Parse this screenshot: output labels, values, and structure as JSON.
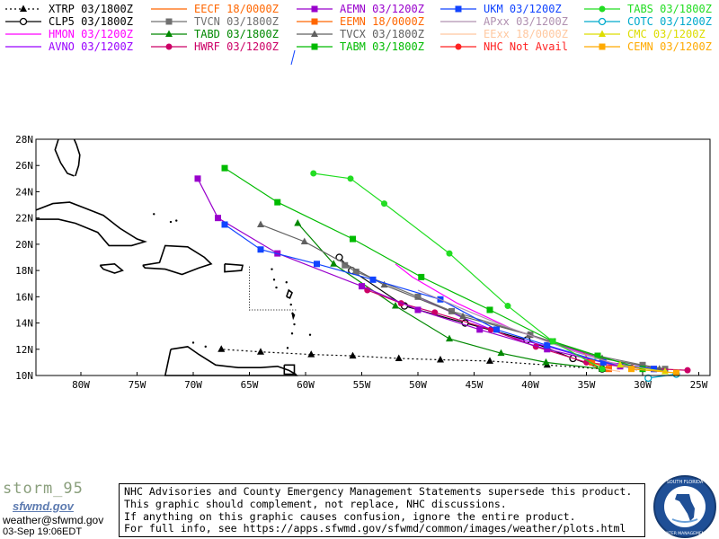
{
  "chart_data": {
    "type": "line",
    "title": "",
    "xlabel": "",
    "ylabel": "",
    "xlim": [
      -84,
      -24
    ],
    "ylim": [
      10,
      28
    ],
    "x_ticks": [
      -80,
      -75,
      -70,
      -65,
      -60,
      -55,
      -50,
      -45,
      -40,
      -35,
      -30,
      -25
    ],
    "x_tick_labels": [
      "80W",
      "75W",
      "70W",
      "65W",
      "60W",
      "55W",
      "50W",
      "45W",
      "40W",
      "35W",
      "30W",
      "25W"
    ],
    "y_ticks": [
      10,
      12,
      14,
      16,
      18,
      20,
      22,
      24,
      26,
      28
    ],
    "y_tick_labels": [
      "10N",
      "12N",
      "14N",
      "16N",
      "18N",
      "20N",
      "22N",
      "24N",
      "26N",
      "28N"
    ],
    "grid": false,
    "legend_position": "top",
    "series": [
      {
        "name": "XTRP 03/1800Z",
        "color": "#000000",
        "marker": "triangle",
        "dash": "2,3",
        "points": [
          [
            -33.6,
            10.5
          ],
          [
            -38.5,
            10.8
          ],
          [
            -43.6,
            11.1
          ],
          [
            -48.0,
            11.2
          ],
          [
            -51.7,
            11.3
          ],
          [
            -55.8,
            11.5
          ],
          [
            -59.5,
            11.6
          ],
          [
            -64.0,
            11.8
          ],
          [
            -67.5,
            12.0
          ]
        ]
      },
      {
        "name": "CLP5 03/1800Z",
        "color": "#000000",
        "marker": "circle-open",
        "points": [
          [
            -33.6,
            10.5
          ],
          [
            -36.2,
            11.3
          ],
          [
            -40.3,
            12.7
          ],
          [
            -45.8,
            14.0
          ],
          [
            -51.2,
            15.3
          ],
          [
            -55.9,
            18.0
          ],
          [
            -57.0,
            19.0
          ]
        ]
      },
      {
        "name": "HMON 03/1200Z",
        "color": "#ff00ff",
        "marker": "none",
        "points": [
          [
            -29.0,
            10.5
          ],
          [
            -33.0,
            11.0
          ],
          [
            -37.0,
            12.2
          ],
          [
            -41.5,
            13.5
          ],
          [
            -46.5,
            15.5
          ],
          [
            -50.5,
            17.5
          ],
          [
            -52.0,
            18.5
          ]
        ]
      },
      {
        "name": "AVNO 03/1200Z",
        "color": "#9900ff",
        "marker": "none",
        "points": [
          [
            -30.0,
            10.5
          ],
          [
            -34.0,
            11.1
          ],
          [
            -38.0,
            12.1
          ],
          [
            -42.0,
            13.0
          ],
          [
            -46.0,
            14.4
          ],
          [
            -50.0,
            16.0
          ]
        ]
      },
      {
        "name": "EECF 18/0000Z",
        "color": "#ff6600",
        "marker": "none",
        "points": [
          [
            -34.0,
            10.5
          ],
          [
            -34.8,
            11.2
          ],
          [
            -35.3,
            11.8
          ]
        ]
      },
      {
        "name": "TVCN 03/1800Z",
        "color": "#707070",
        "marker": "square",
        "points": [
          [
            -28.0,
            10.5
          ],
          [
            -30.0,
            10.8
          ],
          [
            -34.0,
            11.5
          ],
          [
            -40.0,
            13.1
          ],
          [
            -47.0,
            14.9
          ],
          [
            -50.0,
            16.0
          ],
          [
            -55.5,
            17.9
          ],
          [
            -56.5,
            18.4
          ]
        ]
      },
      {
        "name": "TABD 03/1800Z",
        "color": "#008800",
        "marker": "triangle",
        "points": [
          [
            -33.6,
            10.5
          ],
          [
            -38.6,
            11.0
          ],
          [
            -42.6,
            11.7
          ],
          [
            -47.2,
            12.8
          ],
          [
            -52.0,
            15.3
          ],
          [
            -57.5,
            18.5
          ],
          [
            -60.7,
            21.6
          ]
        ]
      },
      {
        "name": "HWRF 03/1200Z",
        "color": "#cc0066",
        "marker": "circle",
        "points": [
          [
            -26.0,
            10.4
          ],
          [
            -31.0,
            10.6
          ],
          [
            -35.0,
            11.0
          ],
          [
            -39.5,
            12.2
          ],
          [
            -43.5,
            13.5
          ],
          [
            -48.5,
            14.8
          ],
          [
            -51.5,
            15.5
          ],
          [
            -54.5,
            16.5
          ]
        ]
      },
      {
        "name": "AEMN 03/1200Z",
        "color": "#9900cc",
        "marker": "square",
        "points": [
          [
            -29.0,
            10.5
          ],
          [
            -32.0,
            10.7
          ],
          [
            -38.5,
            12.0
          ],
          [
            -44.5,
            13.5
          ],
          [
            -50.0,
            15.0
          ],
          [
            -55.0,
            16.8
          ],
          [
            -62.5,
            19.3
          ],
          [
            -67.8,
            22.0
          ],
          [
            -69.6,
            25.0
          ]
        ]
      },
      {
        "name": "EEMN 18/0000Z",
        "color": "#ff6600",
        "marker": "square",
        "points": [
          [
            -33.0,
            10.5
          ],
          [
            -34.5,
            11.0
          ]
        ]
      },
      {
        "name": "TVCX 03/1800Z",
        "color": "#606060",
        "marker": "triangle",
        "points": [
          [
            -28.5,
            10.5
          ],
          [
            -33.6,
            11.3
          ],
          [
            -40.1,
            13.1
          ],
          [
            -46.0,
            14.5
          ],
          [
            -53.0,
            16.9
          ],
          [
            -60.1,
            20.2
          ],
          [
            -64.0,
            21.5
          ]
        ]
      },
      {
        "name": "TABM 03/1800Z",
        "color": "#00bb00",
        "marker": "square",
        "points": [
          [
            -30.0,
            10.5
          ],
          [
            -34.0,
            11.5
          ],
          [
            -38.0,
            12.6
          ],
          [
            -43.6,
            15.0
          ],
          [
            -49.7,
            17.5
          ],
          [
            -55.8,
            20.4
          ],
          [
            -62.5,
            23.2
          ],
          [
            -67.2,
            25.8
          ]
        ]
      },
      {
        "name": "UKM 03/1200Z",
        "color": "#1144ff",
        "marker": "square",
        "points": [
          [
            -29.0,
            10.5
          ],
          [
            -33.5,
            11.0
          ],
          [
            -38.5,
            12.3
          ],
          [
            -43.0,
            13.5
          ],
          [
            -48.0,
            15.8
          ],
          [
            -54.0,
            17.3
          ],
          [
            -59.0,
            18.5
          ],
          [
            -64.0,
            19.6
          ],
          [
            -67.2,
            21.5
          ]
        ]
      },
      {
        "name": "APxx 03/1200Z",
        "color": "#b090b0",
        "marker": "none",
        "points": [
          [
            -30.5,
            10.4
          ],
          [
            -36.0,
            11.8
          ],
          [
            -43.0,
            14.0
          ],
          [
            -50.0,
            16.5
          ]
        ]
      },
      {
        "name": "EExx 18/0000Z",
        "color": "#ffc8a0",
        "marker": "none",
        "points": [
          [
            -32.0,
            10.3
          ],
          [
            -34.0,
            10.6
          ]
        ]
      },
      {
        "name": "NHC Not Avail",
        "color": "#ff2222",
        "marker": "circle",
        "points": []
      },
      {
        "name": "TABS 03/1800Z",
        "color": "#22dd22",
        "marker": "circle",
        "points": [
          [
            -33.6,
            10.5
          ],
          [
            -38.0,
            12.6
          ],
          [
            -42.0,
            15.3
          ],
          [
            -47.2,
            19.3
          ],
          [
            -53.0,
            23.1
          ],
          [
            -56.0,
            25.0
          ],
          [
            -59.3,
            25.4
          ]
        ]
      },
      {
        "name": "COTC 03/1200Z",
        "color": "#00aacc",
        "marker": "circle-open",
        "points": [
          [
            -27.0,
            10.1
          ],
          [
            -29.5,
            9.8
          ]
        ]
      },
      {
        "name": "CMC 03/1200Z",
        "color": "#dddd00",
        "marker": "triangle",
        "points": [
          [
            -28.0,
            10.3
          ],
          [
            -32.0,
            10.8
          ]
        ]
      },
      {
        "name": "CEMN 03/1200Z",
        "color": "#ffaa00",
        "marker": "square",
        "points": [
          [
            -27.0,
            10.2
          ],
          [
            -31.0,
            10.5
          ]
        ]
      }
    ]
  },
  "footer": {
    "storm_label": "storm_95",
    "brand": "sfwmd.gov",
    "email": "weather@sfwmd.gov",
    "timestamp": "03-Sep 19:06EDT",
    "disclaimer": [
      "NHC Advisories and County Emergency Management Statements supersede this product.",
      "This graphic should complement, not replace, NHC discussions.",
      "If anything on this graphic causes confusion, ignore the entire product.",
      "For full info, see  https://apps.sfwmd.gov/sfwmd/common/images/weather/plots.html"
    ],
    "seal_text": "SOUTH FLORIDA WATER MANAGEMENT DISTRICT"
  },
  "colors": {
    "land": "#000000",
    "frame": "#000000",
    "storm_label": "#8a9f7c",
    "brand": "#5d7bb0",
    "seal": "#1f4f96"
  }
}
